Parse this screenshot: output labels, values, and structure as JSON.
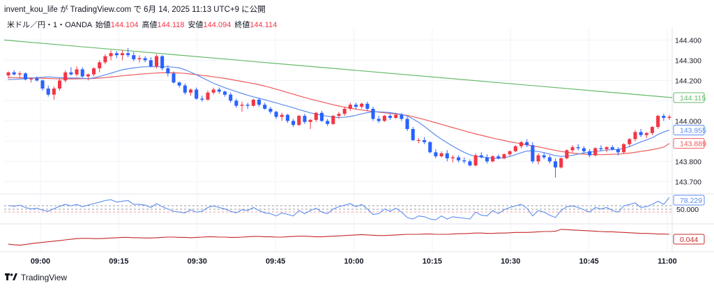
{
  "header": {
    "user": "invent_kou_life",
    "ga": "が",
    "site": "TradingView.com",
    "de": "で",
    "datetime": "6月 14, 2025 11:13 UTC+9",
    "suffix": "に公開"
  },
  "legend": {
    "symbol": "米ドル／円・1・OANDA",
    "open_label": "始値",
    "open": "144.104",
    "high_label": "高値",
    "high": "144.118",
    "low_label": "安値",
    "low": "144.094",
    "close_label": "終値",
    "close": "144.114"
  },
  "footer": {
    "brand": "TradingView"
  },
  "colors": {
    "up": "#f23645",
    "down": "#2962ff",
    "ma_fast": "#5b8def",
    "ma_mid": "#f05a5a",
    "ma_slow": "#66bb6a",
    "rsi": "#5b8def",
    "sub2": "#c62828"
  },
  "chart_data": {
    "type": "candlestick",
    "symbol": "米ドル／円・1・OANDA",
    "y_ticks": [
      "144.400",
      "144.300",
      "144.200",
      "144.000",
      "143.800",
      "143.700"
    ],
    "ylim": [
      143.66,
      144.46
    ],
    "x_ticks": [
      "09:00",
      "09:15",
      "09:30",
      "09:45",
      "10:00",
      "10:15",
      "10:30",
      "10:45",
      "11:00"
    ],
    "price_tags": [
      {
        "value": "144.115",
        "color": "#66bb6a"
      },
      {
        "value": "143.955",
        "color": "#5b8def"
      },
      {
        "value": "143.889",
        "color": "#f05a5a"
      }
    ],
    "candles": [
      [
        144.225,
        144.245,
        144.21,
        144.24
      ],
      [
        144.24,
        144.25,
        144.225,
        144.23
      ],
      [
        144.23,
        144.245,
        144.215,
        144.235
      ],
      [
        144.235,
        144.24,
        144.2,
        144.205
      ],
      [
        144.205,
        144.215,
        144.19,
        144.21
      ],
      [
        144.21,
        144.22,
        144.195,
        144.2
      ],
      [
        144.2,
        144.205,
        144.15,
        144.16
      ],
      [
        144.16,
        144.175,
        144.12,
        144.13
      ],
      [
        144.13,
        144.17,
        144.105,
        144.16
      ],
      [
        144.16,
        144.21,
        144.15,
        144.2
      ],
      [
        144.2,
        144.25,
        144.19,
        144.24
      ],
      [
        144.24,
        144.265,
        144.225,
        144.23
      ],
      [
        144.23,
        144.27,
        144.22,
        144.255
      ],
      [
        144.255,
        144.265,
        144.215,
        144.22
      ],
      [
        144.22,
        144.235,
        144.2,
        144.23
      ],
      [
        144.23,
        144.265,
        144.22,
        144.26
      ],
      [
        144.26,
        144.3,
        144.24,
        144.29
      ],
      [
        144.29,
        144.33,
        144.28,
        144.32
      ],
      [
        144.32,
        144.35,
        144.3,
        144.335
      ],
      [
        144.335,
        144.345,
        144.31,
        144.325
      ],
      [
        144.325,
        144.35,
        144.3,
        144.335
      ],
      [
        144.335,
        144.36,
        144.315,
        144.325
      ],
      [
        144.325,
        144.34,
        144.295,
        144.305
      ],
      [
        144.305,
        144.325,
        144.29,
        144.31
      ],
      [
        144.31,
        144.32,
        144.29,
        144.3
      ],
      [
        144.3,
        144.315,
        144.265,
        144.27
      ],
      [
        144.27,
        144.33,
        144.26,
        144.32
      ],
      [
        144.32,
        144.325,
        144.25,
        144.26
      ],
      [
        144.26,
        144.275,
        144.22,
        144.235
      ],
      [
        144.235,
        144.245,
        144.185,
        144.19
      ],
      [
        144.19,
        144.195,
        144.165,
        144.175
      ],
      [
        144.175,
        144.185,
        144.13,
        144.14
      ],
      [
        144.14,
        144.16,
        144.125,
        144.155
      ],
      [
        144.155,
        144.165,
        144.105,
        144.11
      ],
      [
        144.11,
        144.125,
        144.095,
        144.105
      ],
      [
        144.105,
        144.15,
        144.1,
        144.14
      ],
      [
        144.14,
        144.165,
        144.13,
        144.155
      ],
      [
        144.155,
        144.165,
        144.135,
        144.145
      ],
      [
        144.145,
        144.15,
        144.12,
        144.13
      ],
      [
        144.13,
        144.14,
        144.09,
        144.1
      ],
      [
        144.1,
        144.11,
        144.065,
        144.075
      ],
      [
        144.075,
        144.095,
        144.045,
        144.08
      ],
      [
        144.08,
        144.09,
        144.06,
        144.075
      ],
      [
        144.075,
        144.11,
        144.07,
        144.105
      ],
      [
        144.105,
        144.115,
        144.07,
        144.08
      ],
      [
        144.08,
        144.09,
        144.055,
        144.06
      ],
      [
        144.06,
        144.07,
        144.035,
        144.045
      ],
      [
        144.045,
        144.05,
        144.01,
        144.02
      ],
      [
        144.02,
        144.04,
        144.0,
        144.03
      ],
      [
        144.03,
        144.035,
        143.99,
        144.0
      ],
      [
        144.0,
        144.01,
        143.97,
        143.98
      ],
      [
        143.98,
        144.03,
        143.975,
        144.025
      ],
      [
        144.025,
        144.035,
        143.985,
        143.995
      ],
      [
        143.995,
        144.01,
        143.96,
        144.005
      ],
      [
        144.005,
        144.045,
        143.995,
        144.04
      ],
      [
        144.04,
        144.05,
        143.995,
        144.0
      ],
      [
        144.0,
        144.01,
        143.975,
        143.985
      ],
      [
        143.985,
        144.03,
        143.98,
        144.025
      ],
      [
        144.025,
        144.045,
        144.01,
        144.035
      ],
      [
        144.035,
        144.07,
        144.025,
        144.06
      ],
      [
        144.06,
        144.09,
        144.05,
        144.08
      ],
      [
        144.08,
        144.09,
        144.06,
        144.07
      ],
      [
        144.07,
        144.09,
        144.06,
        144.085
      ],
      [
        144.085,
        144.095,
        144.05,
        144.06
      ],
      [
        144.06,
        144.07,
        144.0,
        144.01
      ],
      [
        144.01,
        144.025,
        143.99,
        144.0
      ],
      [
        144.0,
        144.03,
        143.995,
        144.025
      ],
      [
        144.025,
        144.035,
        144.005,
        144.015
      ],
      [
        144.015,
        144.04,
        144.01,
        144.03
      ],
      [
        144.03,
        144.04,
        144.0,
        144.01
      ],
      [
        144.01,
        144.02,
        143.95,
        143.96
      ],
      [
        143.96,
        143.97,
        143.9,
        143.905
      ],
      [
        143.905,
        143.915,
        143.89,
        143.905
      ],
      [
        143.905,
        143.92,
        143.885,
        143.895
      ],
      [
        143.895,
        143.9,
        143.84,
        143.845
      ],
      [
        143.845,
        143.86,
        143.815,
        143.825
      ],
      [
        143.825,
        143.85,
        143.82,
        143.84
      ],
      [
        143.84,
        143.855,
        143.8,
        143.815
      ],
      [
        143.815,
        143.83,
        143.795,
        143.82
      ],
      [
        143.82,
        143.83,
        143.795,
        143.805
      ],
      [
        143.805,
        143.82,
        143.79,
        143.8
      ],
      [
        143.8,
        143.81,
        143.775,
        143.78
      ],
      [
        143.78,
        143.84,
        143.775,
        143.83
      ],
      [
        143.83,
        143.845,
        143.815,
        143.82
      ],
      [
        143.82,
        143.835,
        143.79,
        143.8
      ],
      [
        143.8,
        143.83,
        143.795,
        143.825
      ],
      [
        143.825,
        143.835,
        143.81,
        143.815
      ],
      [
        143.815,
        143.84,
        143.81,
        143.835
      ],
      [
        143.835,
        143.855,
        143.825,
        143.85
      ],
      [
        143.85,
        143.88,
        143.845,
        143.875
      ],
      [
        143.875,
        143.9,
        143.865,
        143.895
      ],
      [
        143.895,
        143.91,
        143.87,
        143.88
      ],
      [
        143.88,
        143.895,
        143.79,
        143.8
      ],
      [
        143.8,
        143.84,
        143.785,
        143.83
      ],
      [
        143.83,
        143.845,
        143.81,
        143.82
      ],
      [
        143.82,
        143.83,
        143.79,
        143.8
      ],
      [
        143.8,
        143.815,
        143.72,
        143.77
      ],
      [
        143.77,
        143.82,
        143.765,
        143.815
      ],
      [
        143.815,
        143.86,
        143.81,
        143.855
      ],
      [
        143.855,
        143.88,
        143.845,
        143.87
      ],
      [
        143.87,
        143.885,
        143.855,
        143.865
      ],
      [
        143.865,
        143.875,
        143.84,
        143.85
      ],
      [
        143.85,
        143.86,
        143.82,
        143.83
      ],
      [
        143.83,
        143.87,
        143.825,
        143.865
      ],
      [
        143.865,
        143.88,
        143.85,
        143.86
      ],
      [
        143.86,
        143.875,
        143.845,
        143.87
      ],
      [
        143.87,
        143.88,
        143.855,
        143.86
      ],
      [
        143.86,
        143.87,
        143.83,
        143.845
      ],
      [
        143.845,
        143.89,
        143.84,
        143.885
      ],
      [
        143.885,
        143.915,
        143.875,
        143.91
      ],
      [
        143.91,
        143.955,
        143.9,
        143.945
      ],
      [
        143.945,
        143.96,
        143.92,
        143.93
      ],
      [
        143.93,
        143.945,
        143.915,
        143.94
      ],
      [
        143.94,
        143.975,
        143.93,
        143.97
      ],
      [
        143.97,
        144.03,
        143.96,
        144.025
      ],
      [
        144.025,
        144.035,
        144.0,
        144.015
      ],
      [
        144.015,
        144.03,
        144.005,
        144.02
      ]
    ],
    "ma_fast": [
      144.205,
      144.206,
      144.207,
      144.209,
      144.212,
      144.214,
      144.216,
      144.218,
      144.216,
      144.214,
      144.212,
      144.212,
      144.212,
      144.211,
      144.209,
      144.213,
      144.22,
      144.228,
      144.236,
      144.245,
      144.253,
      144.258,
      144.262,
      144.266,
      144.268,
      144.268,
      144.268,
      144.268,
      144.268,
      144.266,
      144.262,
      144.253,
      144.241,
      144.228,
      144.214,
      144.2,
      144.186,
      144.175,
      144.164,
      144.154,
      144.145,
      144.136,
      144.127,
      144.119,
      144.112,
      144.105,
      144.097,
      144.089,
      144.081,
      144.073,
      144.065,
      144.056,
      144.048,
      144.04,
      144.034,
      144.028,
      144.023,
      144.019,
      144.017,
      144.018,
      144.022,
      144.028,
      144.035,
      144.041,
      144.045,
      144.045,
      144.043,
      144.041,
      144.037,
      144.032,
      144.024,
      144.01,
      143.993,
      143.973,
      143.951,
      143.929,
      143.91,
      143.892,
      143.875,
      143.859,
      143.845,
      143.832,
      143.826,
      143.822,
      143.818,
      143.816,
      143.815,
      143.818,
      143.824,
      143.833,
      143.843,
      143.851,
      143.852,
      143.849,
      143.843,
      143.836,
      143.828,
      143.825,
      143.826,
      143.83,
      143.836,
      143.842,
      143.845,
      143.849,
      143.852,
      143.856,
      143.858,
      143.859,
      143.864,
      143.873,
      143.885,
      143.896,
      143.906,
      143.917,
      143.933,
      143.945,
      143.955
    ],
    "ma_mid": [
      144.215,
      144.214,
      144.213,
      144.213,
      144.212,
      144.212,
      144.211,
      144.21,
      144.209,
      144.208,
      144.208,
      144.208,
      144.208,
      144.209,
      144.209,
      144.21,
      144.212,
      144.214,
      144.217,
      144.22,
      144.223,
      144.226,
      144.228,
      144.231,
      144.233,
      144.235,
      144.237,
      144.238,
      144.238,
      144.238,
      144.237,
      144.235,
      144.232,
      144.229,
      144.225,
      144.222,
      144.218,
      144.214,
      144.21,
      144.205,
      144.2,
      144.195,
      144.19,
      144.185,
      144.179,
      144.172,
      144.165,
      144.157,
      144.149,
      144.14,
      144.132,
      144.124,
      144.116,
      144.108,
      144.101,
      144.094,
      144.087,
      144.08,
      144.074,
      144.068,
      144.063,
      144.058,
      144.054,
      144.05,
      144.047,
      144.043,
      144.04,
      144.037,
      144.034,
      144.031,
      144.027,
      144.021,
      144.014,
      144.007,
      143.999,
      143.991,
      143.983,
      143.975,
      143.967,
      143.959,
      143.951,
      143.943,
      143.936,
      143.929,
      143.922,
      143.915,
      143.909,
      143.903,
      143.897,
      143.892,
      143.887,
      143.882,
      143.877,
      143.872,
      143.866,
      143.86,
      143.854,
      143.849,
      143.845,
      143.841,
      143.838,
      143.836,
      143.834,
      143.833,
      143.833,
      143.834,
      143.835,
      143.836,
      143.838,
      143.841,
      143.845,
      143.849,
      143.853,
      143.858,
      143.864,
      143.87,
      143.889
    ],
    "ma_slow": [
      144.4,
      144.115
    ],
    "rsi": [
      57,
      55,
      58,
      52,
      48,
      50,
      45,
      42,
      49,
      55,
      60,
      56,
      60,
      54,
      58,
      62,
      66,
      70,
      72,
      66,
      68,
      70,
      60,
      60,
      58,
      52,
      62,
      54,
      48,
      42,
      40,
      38,
      46,
      40,
      42,
      52,
      56,
      52,
      48,
      42,
      38,
      46,
      44,
      52,
      44,
      38,
      36,
      30,
      38,
      34,
      30,
      44,
      36,
      44,
      50,
      40,
      36,
      48,
      54,
      58,
      62,
      54,
      60,
      48,
      34,
      36,
      48,
      42,
      50,
      40,
      26,
      22,
      30,
      28,
      22,
      20,
      30,
      22,
      28,
      26,
      24,
      22,
      40,
      32,
      30,
      44,
      36,
      46,
      52,
      56,
      60,
      50,
      30,
      44,
      40,
      32,
      26,
      44,
      54,
      56,
      52,
      46,
      40,
      52,
      48,
      52,
      44,
      40,
      56,
      60,
      64,
      52,
      54,
      60,
      68,
      60,
      78
    ],
    "sub2": [
      0.012,
      0.01,
      0.009,
      0.011,
      0.014,
      0.016,
      0.018,
      0.02,
      0.022,
      0.024,
      0.026,
      0.028,
      0.03,
      0.031,
      0.031,
      0.03,
      0.03,
      0.031,
      0.032,
      0.033,
      0.034,
      0.034,
      0.033,
      0.033,
      0.032,
      0.032,
      0.033,
      0.034,
      0.035,
      0.035,
      0.034,
      0.034,
      0.033,
      0.034,
      0.035,
      0.036,
      0.036,
      0.035,
      0.035,
      0.034,
      0.034,
      0.035,
      0.036,
      0.037,
      0.037,
      0.036,
      0.036,
      0.035,
      0.035,
      0.036,
      0.037,
      0.038,
      0.038,
      0.037,
      0.036,
      0.036,
      0.037,
      0.038,
      0.039,
      0.04,
      0.041,
      0.042,
      0.043,
      0.042,
      0.041,
      0.04,
      0.04,
      0.041,
      0.042,
      0.043,
      0.044,
      0.044,
      0.044,
      0.045,
      0.045,
      0.044,
      0.044,
      0.044,
      0.045,
      0.046,
      0.046,
      0.047,
      0.048,
      0.048,
      0.047,
      0.047,
      0.048,
      0.048,
      0.049,
      0.05,
      0.05,
      0.05,
      0.051,
      0.052,
      0.053,
      0.053,
      0.054,
      0.06,
      0.059,
      0.058,
      0.057,
      0.056,
      0.055,
      0.054,
      0.053,
      0.052,
      0.052,
      0.051,
      0.05,
      0.049,
      0.048,
      0.047,
      0.047,
      0.046,
      0.045,
      0.045,
      0.044
    ],
    "rsi_tag": "78.229",
    "rsi_level": "50.000",
    "sub2_tag": "0.044"
  }
}
